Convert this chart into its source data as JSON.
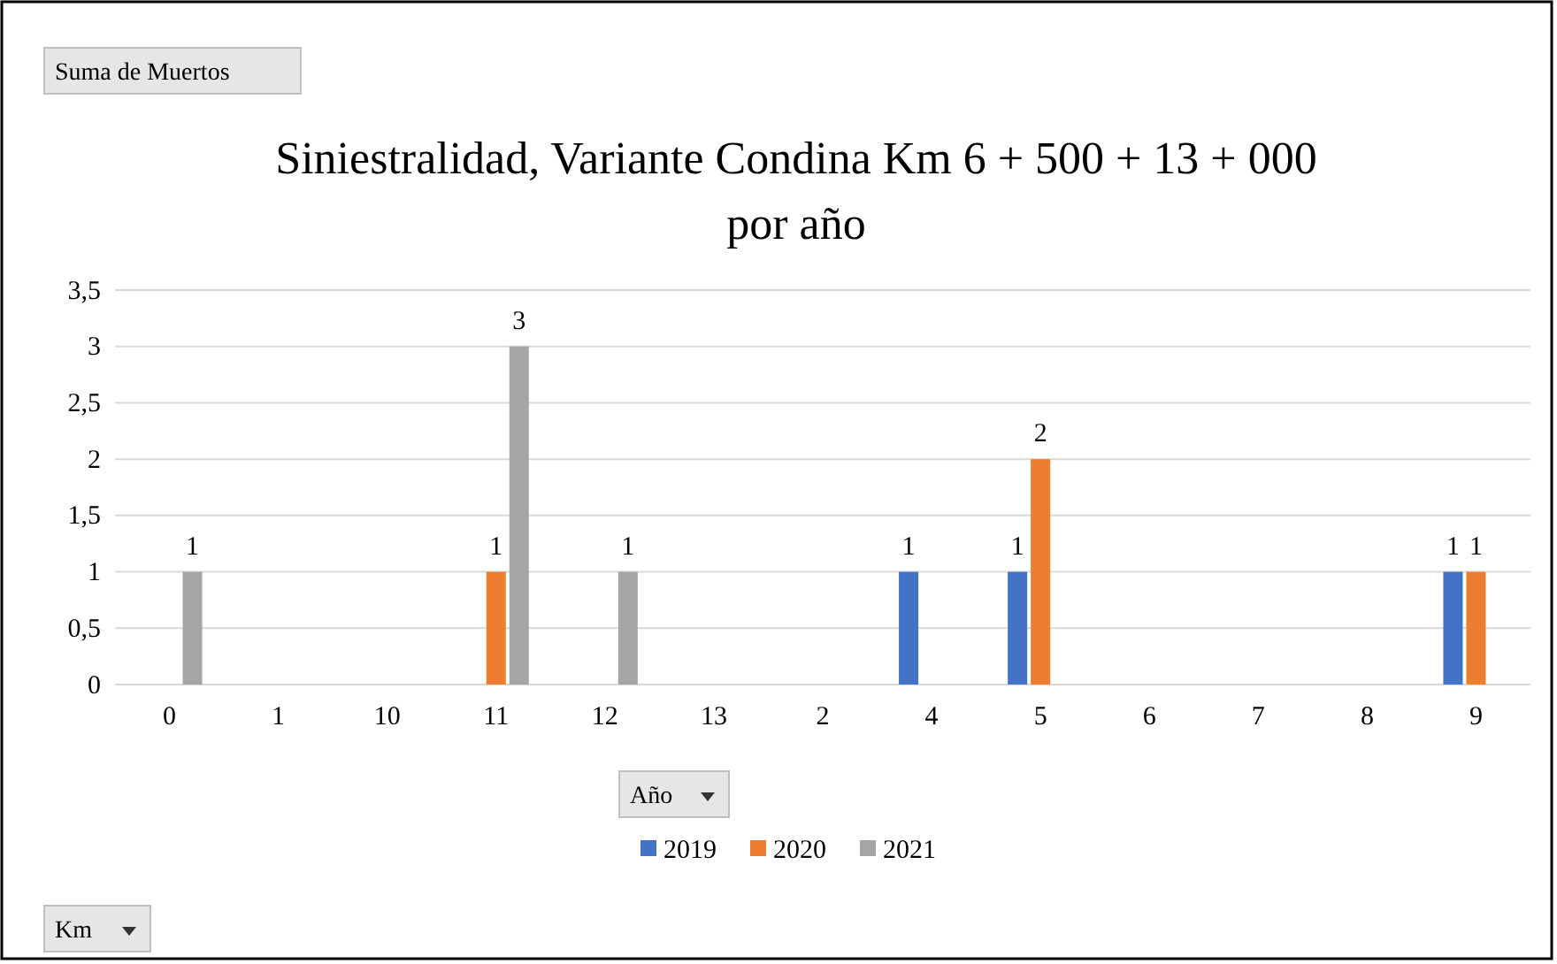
{
  "chart_data": {
    "type": "bar",
    "title": "Siniestralidad, Variante Condina Km 6 + 500 + 13 + 000",
    "subtitle": "por año",
    "categories": [
      "0",
      "1",
      "10",
      "11",
      "12",
      "13",
      "2",
      "4",
      "5",
      "6",
      "7",
      "8",
      "9"
    ],
    "series": [
      {
        "name": "2019",
        "color": "#4472c4",
        "values": [
          null,
          null,
          null,
          null,
          null,
          null,
          null,
          1,
          1,
          null,
          null,
          null,
          1
        ]
      },
      {
        "name": "2020",
        "color": "#ed7d31",
        "values": [
          null,
          null,
          null,
          1,
          null,
          null,
          null,
          null,
          2,
          null,
          null,
          null,
          1
        ]
      },
      {
        "name": "2021",
        "color": "#a5a5a5",
        "values": [
          1,
          null,
          null,
          3,
          1,
          null,
          null,
          null,
          null,
          null,
          null,
          null,
          null
        ]
      }
    ],
    "ylim": [
      0,
      3.5
    ],
    "yticks": [
      0,
      {
        "value": 0.5,
        "label": "0,5"
      },
      1,
      {
        "value": 1.5,
        "label": "1,5"
      },
      2,
      {
        "value": 2.5,
        "label": "2,5"
      },
      3,
      {
        "value": 3.5,
        "label": "3,5"
      }
    ],
    "grid": "y",
    "legend": "bottom",
    "data_labels": true,
    "annotations": [
      "Suma de Muertos",
      "Año",
      "Km"
    ]
  }
}
